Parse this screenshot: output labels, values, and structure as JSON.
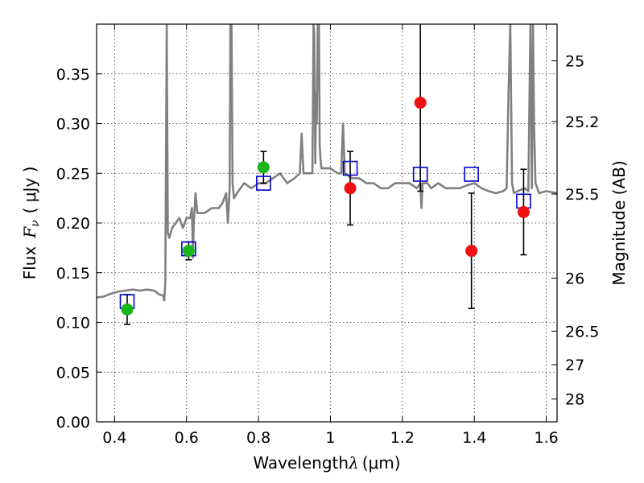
{
  "chart_data": {
    "type": "scatter",
    "title": "",
    "xlabel": "Wavelength",
    "xlabel_symbol": "λ",
    "xlabel_unit": "(μm)",
    "ylabel": "Flux",
    "ylabel_symbol": "F",
    "ylabel_subscript": "ν",
    "ylabel_unit": "( μJy )",
    "ylabel_right": "Magnitude (AB)",
    "xlim": [
      0.35,
      1.63
    ],
    "ylim": [
      0.0,
      0.4
    ],
    "grid": true,
    "x_ticks": [
      0.4,
      0.6,
      0.8,
      1.0,
      1.2,
      1.4,
      1.6
    ],
    "x_tick_labels": [
      "0.4",
      "0.6",
      "0.8",
      "1",
      "1.2",
      "1.4",
      "1.6"
    ],
    "y_ticks": [
      0.0,
      0.05,
      0.1,
      0.15,
      0.2,
      0.25,
      0.3,
      0.35
    ],
    "y_tick_labels": [
      "0.00",
      "0.05",
      "0.10",
      "0.15",
      "0.20",
      "0.25",
      "0.30",
      "0.35"
    ],
    "right_ticks": [
      {
        "label": "25",
        "flux": 0.3631
      },
      {
        "label": "25.2",
        "flux": 0.302
      },
      {
        "label": "25.5",
        "flux": 0.2291
      },
      {
        "label": "26",
        "flux": 0.1445
      },
      {
        "label": "26.5",
        "flux": 0.0912
      },
      {
        "label": "27",
        "flux": 0.0575
      },
      {
        "label": "28",
        "flux": 0.0229
      }
    ],
    "series": [
      {
        "marker": "green-circle",
        "color": "#1ab51a",
        "points": [
          {
            "x": 0.435,
            "y": 0.113,
            "err_lo": 0.015,
            "err_hi": 0.015
          },
          {
            "x": 0.606,
            "y": 0.172,
            "err_lo": 0.009,
            "err_hi": 0.009
          },
          {
            "x": 0.814,
            "y": 0.256,
            "err_lo": 0.016,
            "err_hi": 0.016
          }
        ]
      },
      {
        "marker": "red-circle",
        "color": "#ee1111",
        "points": [
          {
            "x": 1.055,
            "y": 0.235,
            "err_lo": 0.037,
            "err_hi": 0.037
          },
          {
            "x": 1.25,
            "y": 0.321,
            "err_lo": 0.089,
            "err_hi": 0.2
          },
          {
            "x": 1.392,
            "y": 0.172,
            "err_lo": 0.058,
            "err_hi": 0.058
          },
          {
            "x": 1.537,
            "y": 0.211,
            "err_lo": 0.043,
            "err_hi": 0.043
          }
        ]
      },
      {
        "marker": "blue-open-square",
        "color": "#0000cc",
        "points": [
          {
            "x": 0.435,
            "y": 0.121
          },
          {
            "x": 0.606,
            "y": 0.174
          },
          {
            "x": 0.814,
            "y": 0.24
          },
          {
            "x": 1.055,
            "y": 0.255
          },
          {
            "x": 1.25,
            "y": 0.249
          },
          {
            "x": 1.392,
            "y": 0.249
          },
          {
            "x": 1.537,
            "y": 0.222
          }
        ]
      }
    ],
    "spectrum": {
      "color": "#808080",
      "x": [
        0.35,
        0.37,
        0.39,
        0.41,
        0.43,
        0.45,
        0.47,
        0.49,
        0.51,
        0.525,
        0.535,
        0.538,
        0.541,
        0.545,
        0.548,
        0.552,
        0.56,
        0.57,
        0.58,
        0.59,
        0.6,
        0.61,
        0.615,
        0.618,
        0.62,
        0.625,
        0.63,
        0.65,
        0.67,
        0.69,
        0.7,
        0.71,
        0.715,
        0.72,
        0.722,
        0.725,
        0.728,
        0.732,
        0.74,
        0.76,
        0.78,
        0.8,
        0.82,
        0.84,
        0.86,
        0.88,
        0.9,
        0.915,
        0.92,
        0.925,
        0.94,
        0.95,
        0.953,
        0.955,
        0.958,
        0.96,
        0.962,
        0.965,
        0.968,
        0.97,
        0.972,
        0.975,
        0.98,
        1.0,
        1.02,
        1.03,
        1.035,
        1.04,
        1.06,
        1.08,
        1.1,
        1.12,
        1.14,
        1.16,
        1.18,
        1.2,
        1.22,
        1.24,
        1.25,
        1.253,
        1.256,
        1.26,
        1.27,
        1.28,
        1.3,
        1.32,
        1.34,
        1.36,
        1.38,
        1.4,
        1.42,
        1.44,
        1.46,
        1.48,
        1.49,
        1.495,
        1.5,
        1.505,
        1.51,
        1.52,
        1.54,
        1.55,
        1.556,
        1.56,
        1.563,
        1.566,
        1.57,
        1.58,
        1.6,
        1.63
      ],
      "y": [
        0.125,
        0.126,
        0.129,
        0.131,
        0.132,
        0.133,
        0.132,
        0.133,
        0.132,
        0.128,
        0.127,
        0.122,
        0.14,
        0.4,
        0.19,
        0.185,
        0.195,
        0.2,
        0.205,
        0.195,
        0.205,
        0.205,
        0.215,
        0.165,
        0.2,
        0.23,
        0.21,
        0.21,
        0.215,
        0.215,
        0.22,
        0.23,
        0.2,
        0.235,
        0.4,
        0.4,
        0.24,
        0.225,
        0.23,
        0.24,
        0.235,
        0.24,
        0.24,
        0.245,
        0.25,
        0.24,
        0.245,
        0.25,
        0.29,
        0.25,
        0.25,
        0.25,
        0.4,
        0.39,
        0.26,
        0.33,
        0.3,
        0.4,
        0.4,
        0.28,
        0.265,
        0.255,
        0.255,
        0.255,
        0.25,
        0.25,
        0.3,
        0.25,
        0.245,
        0.245,
        0.24,
        0.24,
        0.235,
        0.235,
        0.24,
        0.24,
        0.24,
        0.235,
        0.24,
        0.215,
        0.24,
        0.24,
        0.24,
        0.235,
        0.24,
        0.235,
        0.235,
        0.235,
        0.238,
        0.24,
        0.235,
        0.232,
        0.23,
        0.232,
        0.235,
        0.33,
        0.4,
        0.24,
        0.23,
        0.232,
        0.235,
        0.232,
        0.4,
        0.235,
        0.4,
        0.3,
        0.24,
        0.23,
        0.232,
        0.23
      ]
    }
  }
}
